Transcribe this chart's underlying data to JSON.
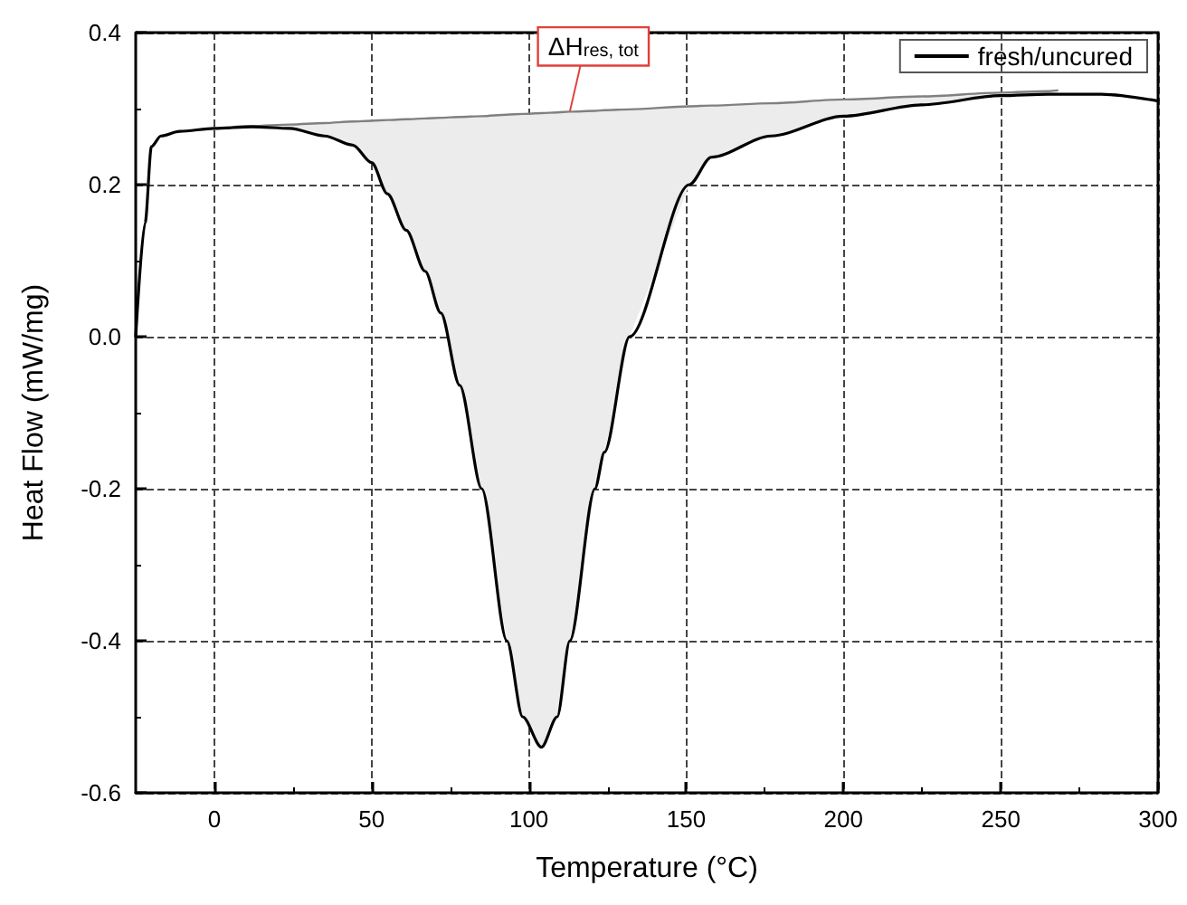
{
  "chart_data": {
    "type": "line",
    "xlabel": "Temperature (°C)",
    "ylabel": "Heat Flow (mW/mg)",
    "xlim": [
      -25,
      300
    ],
    "xticks": [
      0,
      50,
      100,
      150,
      200,
      250,
      300
    ],
    "ylim": [
      -0.6,
      0.4
    ],
    "yticks": [
      -0.6,
      -0.4,
      -0.2,
      {
        "value": 0,
        "label": "0.0"
      },
      0.2,
      0.4
    ],
    "grid": true,
    "legend": "top right",
    "marker": "none",
    "line_style": "solid",
    "annotations": [
      {
        "text": "ΔH$_{res, tot}$",
        "x": 113,
        "y": 0.296
      }
    ],
    "series": [
      {
        "name": "fresh/uncured",
        "color": "#000000",
        "x": [
          -25,
          -22,
          -20,
          -17,
          -11,
          0,
          12,
          24,
          35,
          44,
          50,
          55,
          61,
          67,
          72,
          78,
          85,
          93,
          98,
          104,
          109,
          113,
          121,
          124,
          132,
          151,
          158,
          177,
          200,
          225,
          250,
          265,
          282,
          300
        ],
        "values": [
          0.0,
          0.15,
          0.25,
          0.264,
          0.27,
          0.274,
          0.276,
          0.274,
          0.264,
          0.252,
          0.229,
          0.188,
          0.14,
          0.086,
          0.031,
          -0.064,
          -0.2,
          -0.4,
          -0.5,
          -0.54,
          -0.5,
          -0.4,
          -0.2,
          -0.152,
          0.0,
          0.2,
          0.236,
          0.264,
          0.29,
          0.305,
          0.317,
          0.319,
          0.319,
          0.31
        ]
      },
      {
        "color": "#808080",
        "x": [
          6,
          12,
          24,
          35,
          44,
          50,
          55,
          61,
          67,
          72,
          78,
          85,
          93,
          98,
          104,
          109,
          113,
          121,
          124,
          132,
          151,
          158,
          177,
          200,
          225,
          250,
          265,
          268
        ],
        "values": [
          0.276,
          0.277,
          0.279,
          0.281,
          0.283,
          0.284,
          0.285,
          0.286,
          0.287,
          0.288,
          0.289,
          0.29,
          0.292,
          0.293,
          0.294,
          0.295,
          0.296,
          0.297,
          0.298,
          0.299,
          0.303,
          0.304,
          0.307,
          0.312,
          0.316,
          0.321,
          0.323,
          0.324
        ],
        "upper": [
          0.276,
          0.277,
          0.279,
          0.281,
          0.283,
          0.284,
          0.285,
          0.286,
          0.287,
          0.288,
          0.289,
          0.29,
          0.292,
          0.293,
          0.294,
          0.295,
          0.296,
          0.297,
          0.298,
          0.299,
          0.303,
          0.304,
          0.307,
          0.312,
          0.316,
          0.321,
          0.323,
          0.324
        ],
        "lower": [
          0.275,
          0.276,
          0.274,
          0.264,
          0.252,
          0.229,
          0.188,
          0.14,
          0.086,
          0.031,
          -0.064,
          -0.2,
          -0.4,
          -0.5,
          -0.54,
          -0.5,
          -0.4,
          -0.2,
          -0.152,
          0.0,
          0.2,
          0.236,
          0.264,
          0.29,
          0.305,
          0.317,
          0.319,
          0.319
        ]
      }
    ]
  }
}
